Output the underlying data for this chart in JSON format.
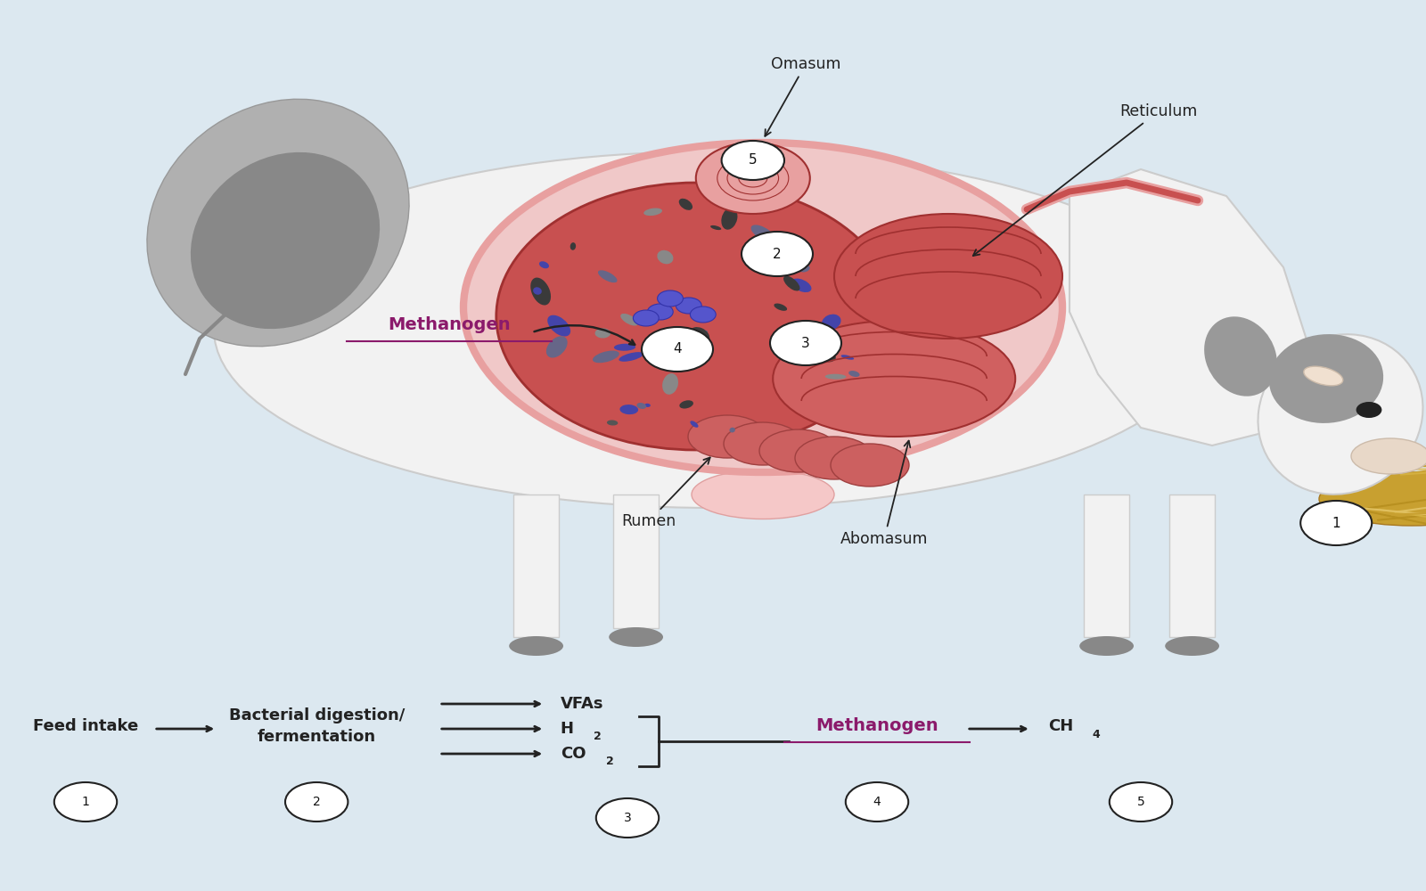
{
  "bg_color": "#dce8f0",
  "label_color": "#222222",
  "methanogen_color": "#8b1a6b",
  "arrow_color": "#222222",
  "circle_bg": "#ffffff",
  "circle_border": "#222222",
  "cow_body": "#f2f2f2",
  "cow_spot": "#aaaaaa",
  "cow_dark_spot": "#888888",
  "digestive_red": "#c85050",
  "digestive_pink": "#e8a0a0",
  "digestive_dark": "#a03030",
  "methanogen_blue": "#5050cc",
  "hay_color": "#c8a844",
  "udder_color": "#f5c8c8",
  "omasum_label": "Omasum",
  "reticulum_label": "Reticulum",
  "rumen_label": "Rumen",
  "abomasum_label": "Abomasum",
  "methanogen_label": "Methanogen",
  "feed_intake_label": "Feed intake",
  "bacterial_label": "Bacterial digestion/\nfermentation",
  "vfas_label": "VFAs",
  "h2_label": "H",
  "h2_sub": "2",
  "co2_label": "CO",
  "co2_sub": "2",
  "ch4_label": "CH",
  "ch4_sub": "4"
}
